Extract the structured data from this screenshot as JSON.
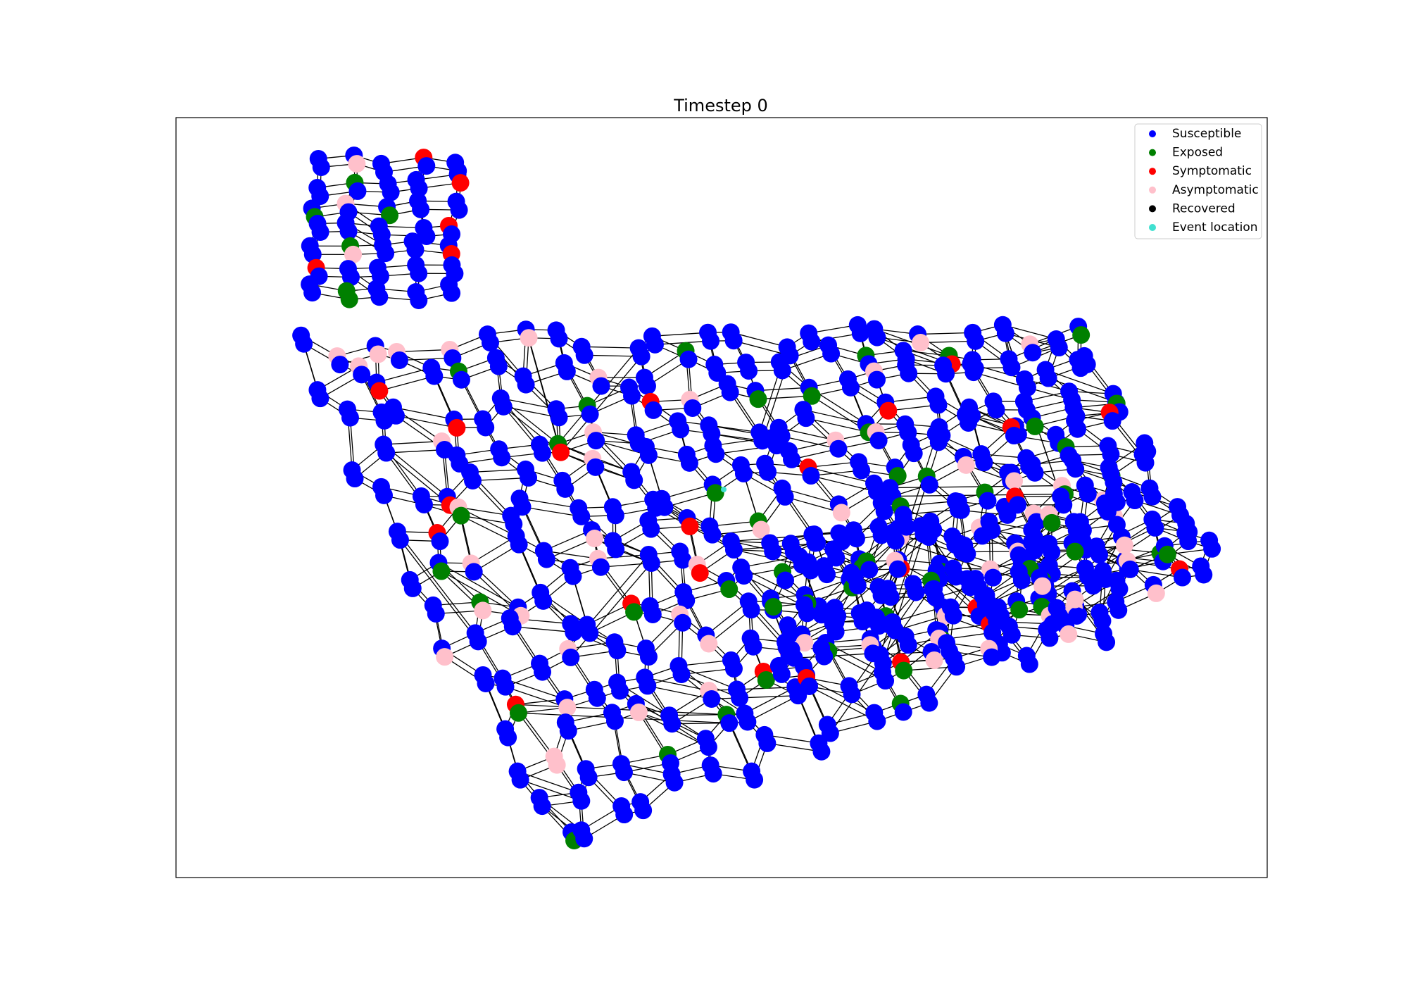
{
  "title": "Timestep 0",
  "legend": {
    "items": [
      {
        "label": "Susceptible",
        "color": "#0000ff"
      },
      {
        "label": "Exposed",
        "color": "#008000"
      },
      {
        "label": "Symptomatic",
        "color": "#ff0000"
      },
      {
        "label": "Asymptomatic",
        "color": "#ffc0cb"
      },
      {
        "label": "Recovered",
        "color": "#000000"
      },
      {
        "label": "Event location",
        "color": "#40e0d0"
      }
    ]
  }
}
